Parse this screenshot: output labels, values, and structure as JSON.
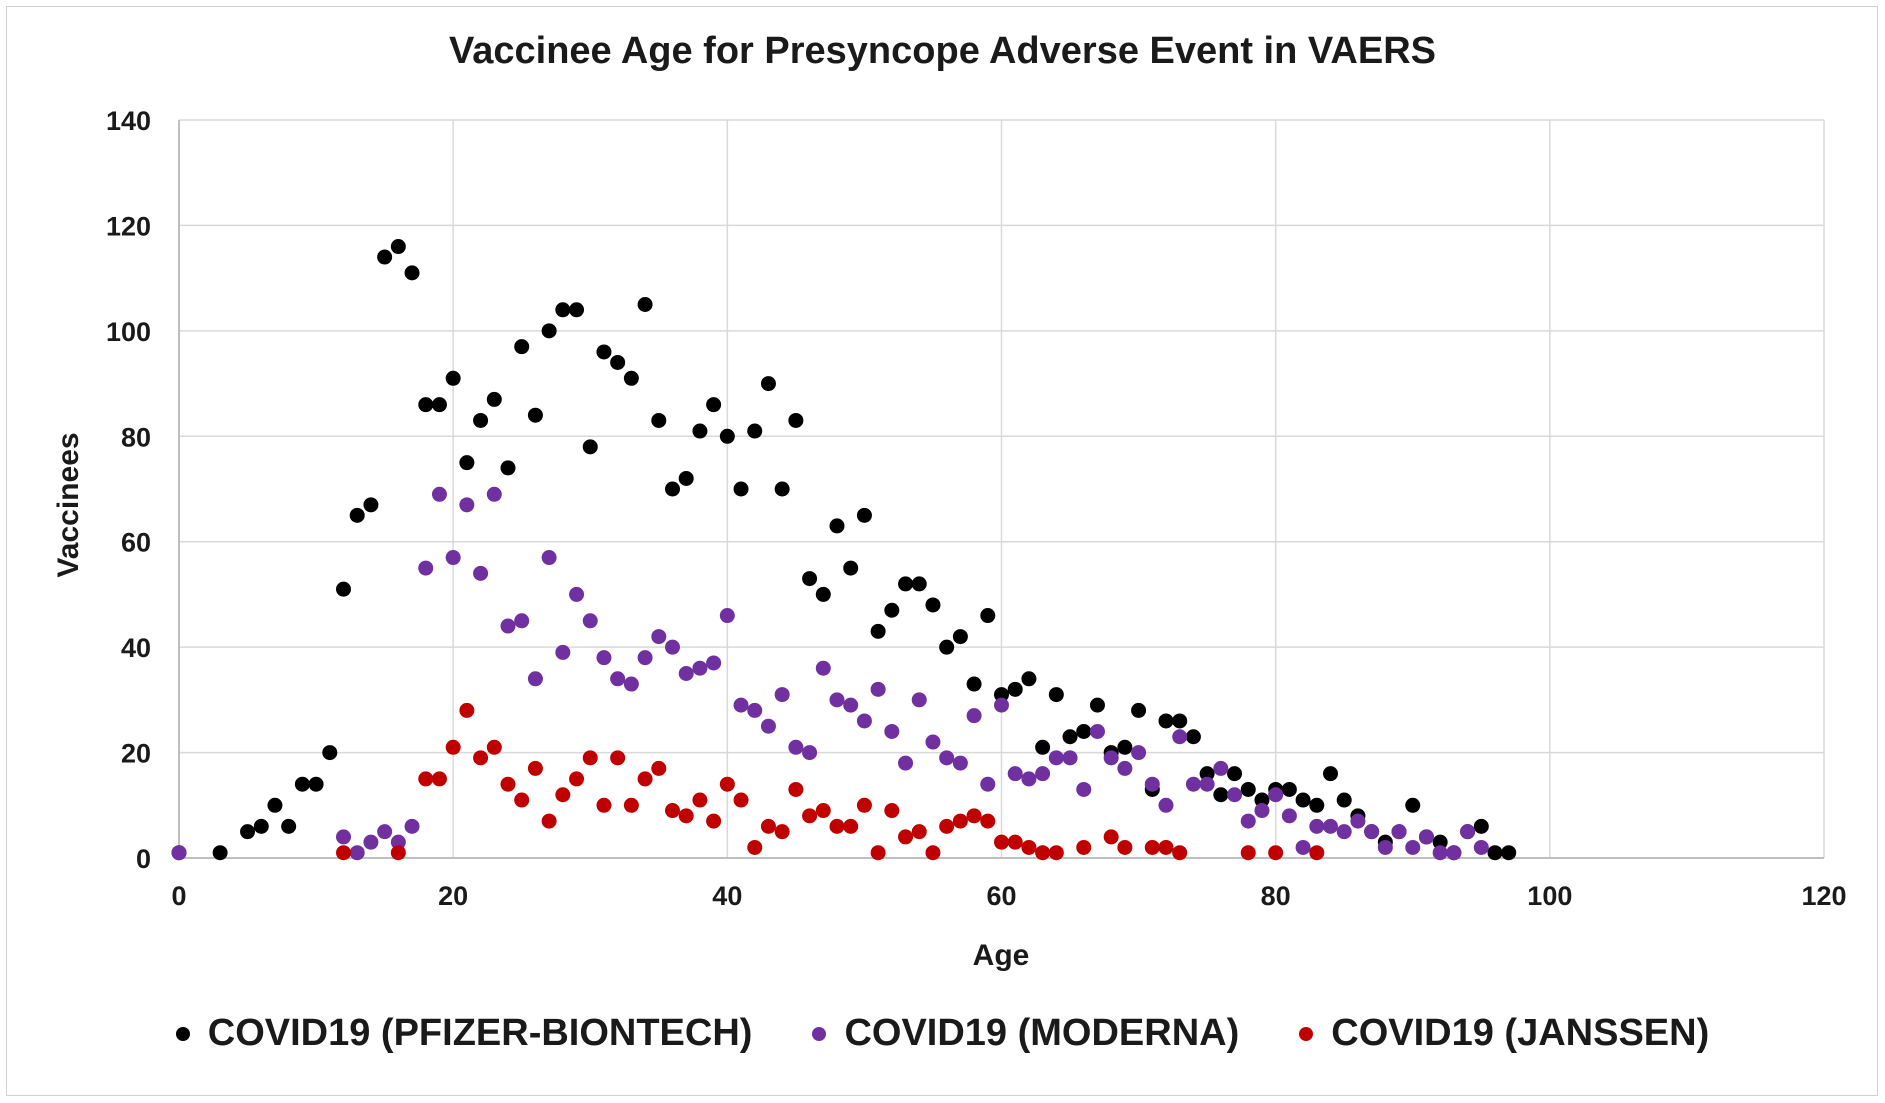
{
  "chart_data": {
    "type": "scatter",
    "title": "Vaccinee Age for Presyncope Adverse Event in VAERS",
    "xlabel": "Age",
    "ylabel": "Vaccinees",
    "xlim": [
      0,
      120
    ],
    "ylim": [
      0,
      140
    ],
    "xticks": [
      0,
      20,
      40,
      60,
      80,
      100,
      120
    ],
    "yticks": [
      0,
      20,
      40,
      60,
      80,
      100,
      120,
      140
    ],
    "grid": true,
    "legend_position": "bottom",
    "series": [
      {
        "name": "COVID19 (PFIZER-BIONTECH)",
        "color": "#000000",
        "points": [
          [
            0,
            1
          ],
          [
            3,
            1
          ],
          [
            5,
            5
          ],
          [
            6,
            6
          ],
          [
            7,
            10
          ],
          [
            8,
            6
          ],
          [
            9,
            14
          ],
          [
            10,
            14
          ],
          [
            11,
            20
          ],
          [
            12,
            51
          ],
          [
            13,
            65
          ],
          [
            14,
            67
          ],
          [
            15,
            114
          ],
          [
            16,
            116
          ],
          [
            17,
            111
          ],
          [
            18,
            86
          ],
          [
            19,
            86
          ],
          [
            20,
            91
          ],
          [
            21,
            75
          ],
          [
            22,
            83
          ],
          [
            23,
            87
          ],
          [
            24,
            74
          ],
          [
            25,
            97
          ],
          [
            26,
            84
          ],
          [
            27,
            100
          ],
          [
            28,
            104
          ],
          [
            29,
            104
          ],
          [
            30,
            78
          ],
          [
            31,
            96
          ],
          [
            32,
            94
          ],
          [
            33,
            91
          ],
          [
            34,
            105
          ],
          [
            35,
            83
          ],
          [
            36,
            70
          ],
          [
            37,
            72
          ],
          [
            38,
            81
          ],
          [
            39,
            86
          ],
          [
            40,
            80
          ],
          [
            41,
            70
          ],
          [
            42,
            81
          ],
          [
            43,
            90
          ],
          [
            44,
            70
          ],
          [
            45,
            83
          ],
          [
            46,
            53
          ],
          [
            47,
            50
          ],
          [
            48,
            63
          ],
          [
            49,
            55
          ],
          [
            50,
            65
          ],
          [
            51,
            43
          ],
          [
            52,
            47
          ],
          [
            53,
            52
          ],
          [
            54,
            52
          ],
          [
            55,
            48
          ],
          [
            56,
            40
          ],
          [
            57,
            42
          ],
          [
            58,
            33
          ],
          [
            59,
            46
          ],
          [
            60,
            31
          ],
          [
            61,
            32
          ],
          [
            62,
            34
          ],
          [
            63,
            21
          ],
          [
            64,
            31
          ],
          [
            65,
            23
          ],
          [
            66,
            24
          ],
          [
            67,
            29
          ],
          [
            68,
            20
          ],
          [
            69,
            21
          ],
          [
            70,
            28
          ],
          [
            71,
            13
          ],
          [
            72,
            26
          ],
          [
            73,
            26
          ],
          [
            74,
            23
          ],
          [
            75,
            16
          ],
          [
            76,
            12
          ],
          [
            77,
            16
          ],
          [
            78,
            13
          ],
          [
            79,
            11
          ],
          [
            80,
            13
          ],
          [
            81,
            13
          ],
          [
            82,
            11
          ],
          [
            83,
            10
          ],
          [
            84,
            16
          ],
          [
            85,
            11
          ],
          [
            86,
            8
          ],
          [
            87,
            5
          ],
          [
            88,
            3
          ],
          [
            89,
            5
          ],
          [
            90,
            10
          ],
          [
            91,
            4
          ],
          [
            92,
            3
          ],
          [
            93,
            1
          ],
          [
            94,
            5
          ],
          [
            95,
            6
          ],
          [
            96,
            1
          ],
          [
            97,
            1
          ]
        ]
      },
      {
        "name": "COVID19 (MODERNA)",
        "color": "#7030A0",
        "points": [
          [
            0,
            1
          ],
          [
            12,
            4
          ],
          [
            13,
            1
          ],
          [
            14,
            3
          ],
          [
            15,
            5
          ],
          [
            16,
            3
          ],
          [
            17,
            6
          ],
          [
            18,
            55
          ],
          [
            19,
            69
          ],
          [
            20,
            57
          ],
          [
            21,
            67
          ],
          [
            22,
            54
          ],
          [
            23,
            69
          ],
          [
            24,
            44
          ],
          [
            25,
            45
          ],
          [
            26,
            34
          ],
          [
            27,
            57
          ],
          [
            28,
            39
          ],
          [
            29,
            50
          ],
          [
            30,
            45
          ],
          [
            31,
            38
          ],
          [
            32,
            34
          ],
          [
            33,
            33
          ],
          [
            34,
            38
          ],
          [
            35,
            42
          ],
          [
            36,
            40
          ],
          [
            37,
            35
          ],
          [
            38,
            36
          ],
          [
            39,
            37
          ],
          [
            40,
            46
          ],
          [
            41,
            29
          ],
          [
            42,
            28
          ],
          [
            43,
            25
          ],
          [
            44,
            31
          ],
          [
            45,
            21
          ],
          [
            46,
            20
          ],
          [
            47,
            36
          ],
          [
            48,
            30
          ],
          [
            49,
            29
          ],
          [
            50,
            26
          ],
          [
            51,
            32
          ],
          [
            52,
            24
          ],
          [
            53,
            18
          ],
          [
            54,
            30
          ],
          [
            55,
            22
          ],
          [
            56,
            19
          ],
          [
            57,
            18
          ],
          [
            58,
            27
          ],
          [
            59,
            14
          ],
          [
            60,
            29
          ],
          [
            61,
            16
          ],
          [
            62,
            15
          ],
          [
            63,
            16
          ],
          [
            64,
            19
          ],
          [
            65,
            19
          ],
          [
            66,
            13
          ],
          [
            67,
            24
          ],
          [
            68,
            19
          ],
          [
            69,
            17
          ],
          [
            70,
            20
          ],
          [
            71,
            14
          ],
          [
            72,
            10
          ],
          [
            73,
            23
          ],
          [
            74,
            14
          ],
          [
            75,
            14
          ],
          [
            76,
            17
          ],
          [
            77,
            12
          ],
          [
            78,
            7
          ],
          [
            79,
            9
          ],
          [
            80,
            12
          ],
          [
            81,
            8
          ],
          [
            82,
            2
          ],
          [
            83,
            6
          ],
          [
            84,
            6
          ],
          [
            85,
            5
          ],
          [
            86,
            7
          ],
          [
            87,
            5
          ],
          [
            88,
            2
          ],
          [
            89,
            5
          ],
          [
            90,
            2
          ],
          [
            91,
            4
          ],
          [
            92,
            1
          ],
          [
            93,
            1
          ],
          [
            94,
            5
          ],
          [
            95,
            2
          ]
        ]
      },
      {
        "name": "COVID19 (JANSSEN)",
        "color": "#C00000",
        "points": [
          [
            12,
            1
          ],
          [
            16,
            1
          ],
          [
            18,
            15
          ],
          [
            19,
            15
          ],
          [
            20,
            21
          ],
          [
            21,
            28
          ],
          [
            22,
            19
          ],
          [
            23,
            21
          ],
          [
            24,
            14
          ],
          [
            25,
            11
          ],
          [
            26,
            17
          ],
          [
            27,
            7
          ],
          [
            28,
            12
          ],
          [
            29,
            15
          ],
          [
            30,
            19
          ],
          [
            31,
            10
          ],
          [
            32,
            19
          ],
          [
            33,
            10
          ],
          [
            34,
            15
          ],
          [
            35,
            17
          ],
          [
            36,
            9
          ],
          [
            37,
            8
          ],
          [
            38,
            11
          ],
          [
            39,
            7
          ],
          [
            40,
            14
          ],
          [
            41,
            11
          ],
          [
            42,
            2
          ],
          [
            43,
            6
          ],
          [
            44,
            5
          ],
          [
            45,
            13
          ],
          [
            46,
            8
          ],
          [
            47,
            9
          ],
          [
            48,
            6
          ],
          [
            49,
            6
          ],
          [
            50,
            10
          ],
          [
            51,
            1
          ],
          [
            52,
            9
          ],
          [
            53,
            4
          ],
          [
            54,
            5
          ],
          [
            55,
            1
          ],
          [
            56,
            6
          ],
          [
            57,
            7
          ],
          [
            58,
            8
          ],
          [
            59,
            7
          ],
          [
            60,
            3
          ],
          [
            61,
            3
          ],
          [
            62,
            2
          ],
          [
            63,
            1
          ],
          [
            64,
            1
          ],
          [
            66,
            2
          ],
          [
            68,
            4
          ],
          [
            69,
            2
          ],
          [
            71,
            2
          ],
          [
            72,
            2
          ],
          [
            73,
            1
          ],
          [
            78,
            1
          ],
          [
            80,
            1
          ],
          [
            83,
            1
          ]
        ]
      }
    ]
  }
}
